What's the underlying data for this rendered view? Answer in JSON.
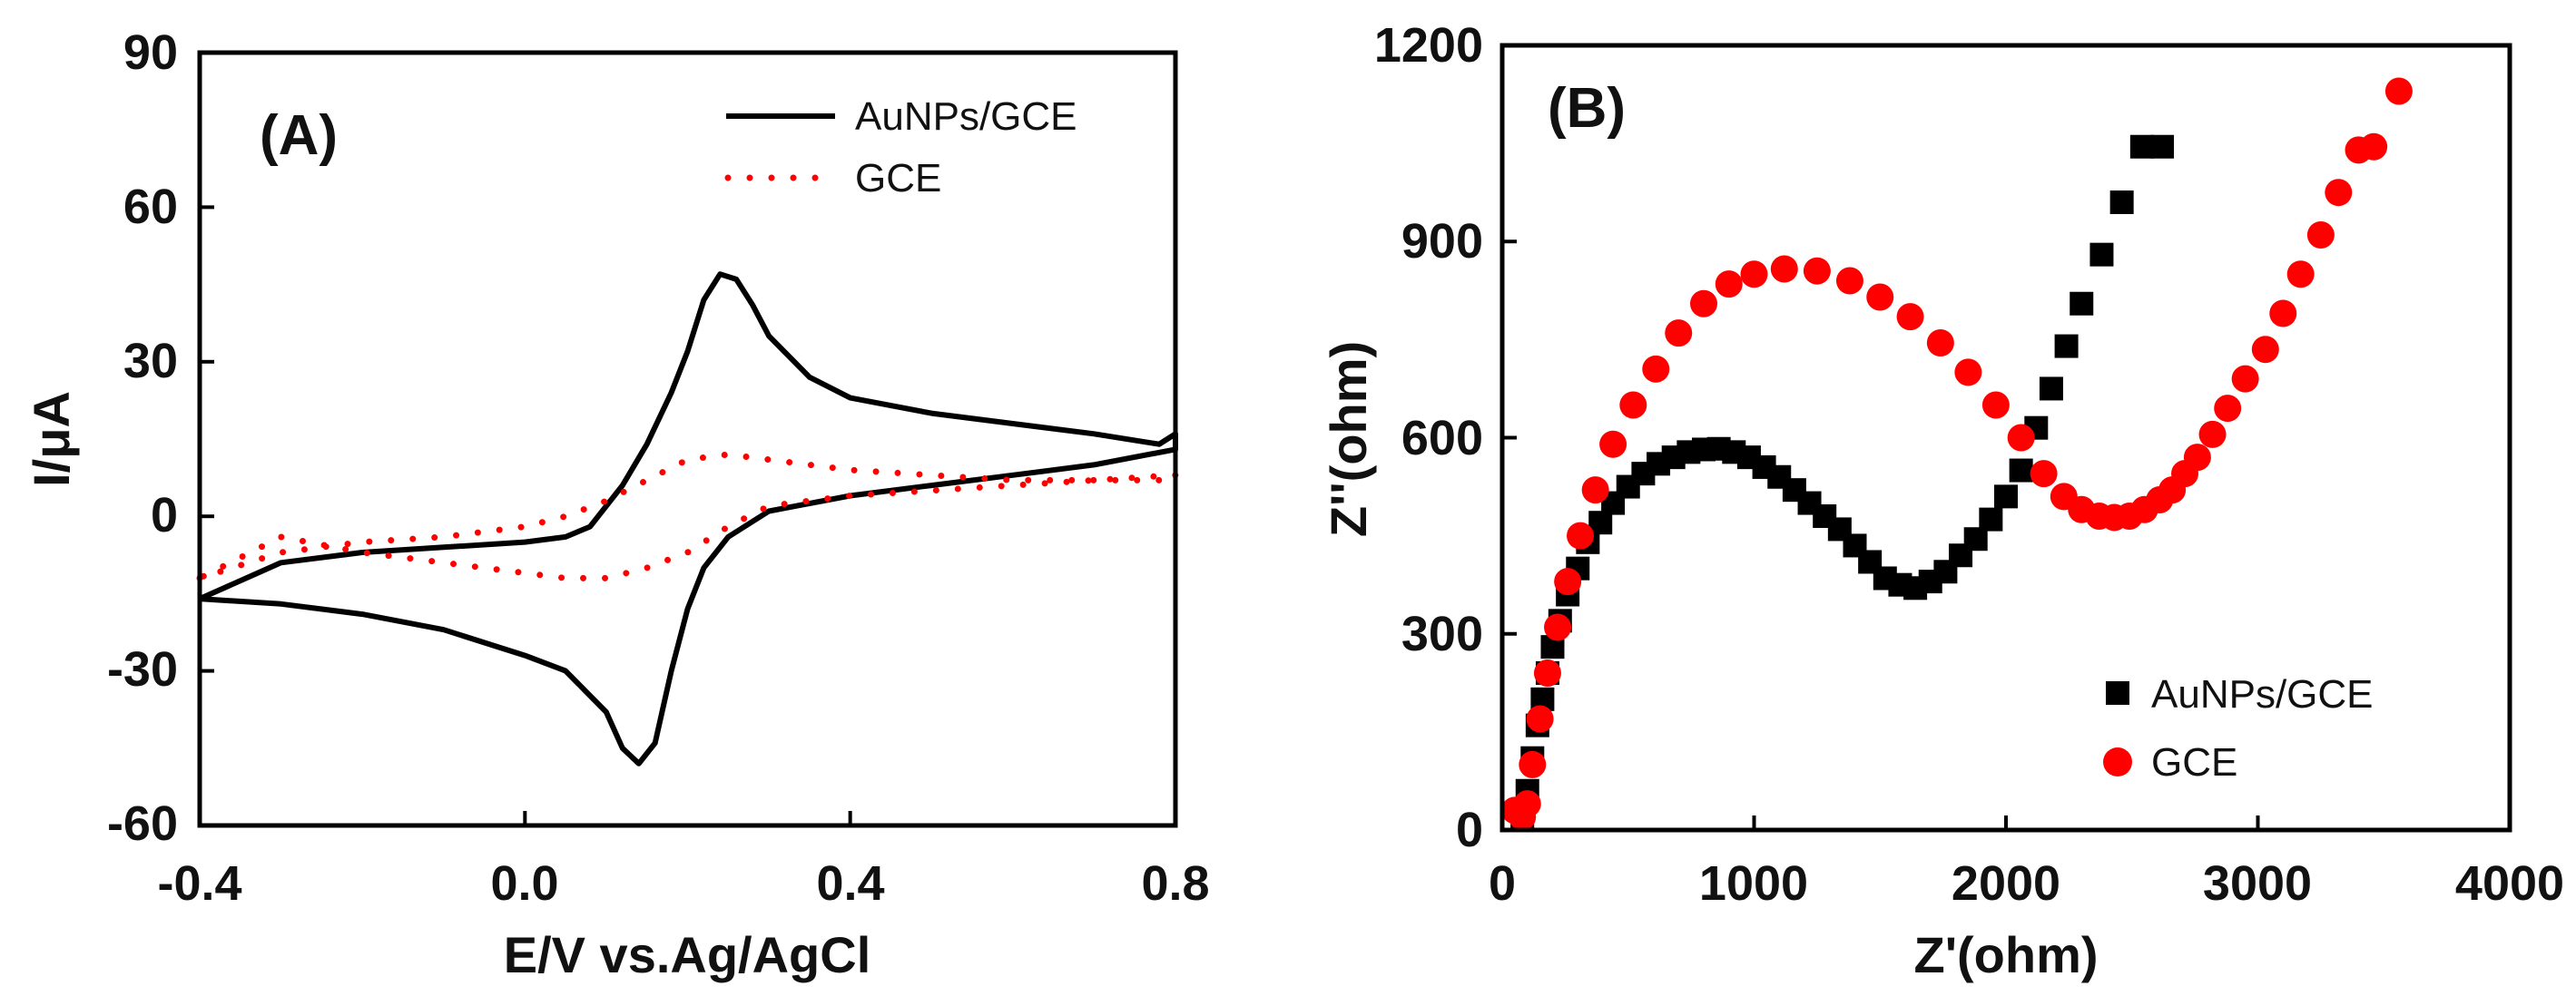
{
  "chart_data": [
    {
      "type": "line",
      "panel": "(A)",
      "xlabel": "E/V vs.Ag/AgCl",
      "ylabel": "I/μA",
      "xlim": [
        -0.4,
        0.8
      ],
      "ylim": [
        -60,
        90
      ],
      "xticks": [
        "-0.4",
        "0.0",
        "0.4",
        "0.8"
      ],
      "yticks": [
        "90",
        "60",
        "30",
        "0",
        "-30",
        "-60"
      ],
      "xtick_values": [
        -0.4,
        0.0,
        0.4,
        0.8
      ],
      "ytick_values": [
        90,
        60,
        30,
        0,
        -30,
        -60
      ],
      "legend": {
        "position": "top-right",
        "entries": [
          "AuNPs/GCE",
          "GCE"
        ]
      },
      "series": [
        {
          "name": "AuNPs/GCE",
          "style": "solid",
          "color": "#000000",
          "x": [
            -0.4,
            -0.3,
            -0.2,
            -0.1,
            0.0,
            0.05,
            0.08,
            0.12,
            0.15,
            0.18,
            0.2,
            0.22,
            0.24,
            0.26,
            0.28,
            0.3,
            0.35,
            0.4,
            0.5,
            0.6,
            0.7,
            0.78,
            0.8,
            0.8,
            0.7,
            0.6,
            0.5,
            0.4,
            0.3,
            0.25,
            0.22,
            0.2,
            0.18,
            0.16,
            0.14,
            0.12,
            0.1,
            0.05,
            0.0,
            -0.1,
            -0.2,
            -0.3,
            -0.4
          ],
          "y": [
            -16,
            -9,
            -7,
            -6,
            -5,
            -4,
            -2,
            6,
            14,
            24,
            32,
            42,
            47,
            46,
            41,
            35,
            27,
            23,
            20,
            18,
            16,
            14,
            16,
            13,
            10,
            8,
            6,
            4,
            1,
            -4,
            -10,
            -18,
            -30,
            -44,
            -48,
            -45,
            -38,
            -30,
            -27,
            -22,
            -19,
            -17,
            -16
          ]
        },
        {
          "name": "GCE",
          "style": "dotted",
          "color": "#ff0000",
          "x": [
            -0.4,
            -0.3,
            -0.2,
            -0.1,
            0.0,
            0.05,
            0.1,
            0.15,
            0.2,
            0.25,
            0.3,
            0.4,
            0.5,
            0.6,
            0.7,
            0.8,
            0.8,
            0.7,
            0.6,
            0.5,
            0.4,
            0.3,
            0.25,
            0.2,
            0.15,
            0.1,
            0.05,
            0.0,
            -0.1,
            -0.2,
            -0.3,
            -0.4
          ],
          "y": [
            -12,
            -7,
            -5,
            -4,
            -2,
            0,
            3,
            7,
            11,
            12,
            11,
            9,
            8,
            7,
            7,
            7,
            8,
            7,
            6,
            5,
            4,
            2,
            -2,
            -7,
            -10,
            -12,
            -12,
            -11,
            -9,
            -7,
            -4,
            -12
          ]
        }
      ]
    },
    {
      "type": "scatter",
      "panel": "(B)",
      "xlabel": "Z'(ohm)",
      "ylabel": "Z''(ohm)",
      "xlim": [
        0,
        4000
      ],
      "ylim": [
        0,
        1200
      ],
      "xticks": [
        "0",
        "1000",
        "2000",
        "3000",
        "4000"
      ],
      "yticks": [
        "1200",
        "900",
        "600",
        "300",
        "0"
      ],
      "xtick_values": [
        0,
        1000,
        2000,
        3000,
        4000
      ],
      "ytick_values": [
        1200,
        900,
        600,
        300,
        0
      ],
      "legend": {
        "position": "bottom-right",
        "entries": [
          "AuNPs/GCE",
          "GCE"
        ]
      },
      "series": [
        {
          "name": "AuNPs/GCE",
          "marker": "square",
          "color": "#000000",
          "x": [
            80,
            100,
            120,
            140,
            160,
            180,
            200,
            230,
            260,
            300,
            340,
            390,
            440,
            500,
            560,
            620,
            680,
            740,
            800,
            860,
            920,
            980,
            1040,
            1100,
            1160,
            1220,
            1280,
            1340,
            1400,
            1460,
            1520,
            1580,
            1640,
            1700,
            1760,
            1820,
            1880,
            1940,
            2000,
            2060,
            2120,
            2180,
            2240,
            2300,
            2380,
            2460,
            2540,
            2620
          ],
          "y": [
            20,
            60,
            110,
            160,
            200,
            240,
            280,
            320,
            360,
            400,
            440,
            470,
            500,
            525,
            545,
            560,
            570,
            578,
            582,
            583,
            578,
            570,
            555,
            540,
            520,
            500,
            480,
            460,
            435,
            410,
            385,
            375,
            370,
            380,
            395,
            420,
            445,
            475,
            510,
            550,
            615,
            675,
            740,
            805,
            880,
            960,
            1045,
            1045
          ]
        },
        {
          "name": "GCE",
          "marker": "circle",
          "color": "#ff0000",
          "x": [
            50,
            80,
            100,
            120,
            150,
            180,
            220,
            260,
            310,
            370,
            440,
            520,
            610,
            700,
            800,
            900,
            1000,
            1120,
            1250,
            1380,
            1500,
            1620,
            1740,
            1850,
            1960,
            2060,
            2150,
            2230,
            2300,
            2370,
            2430,
            2490,
            2550,
            2610,
            2660,
            2710,
            2760,
            2820,
            2880,
            2950,
            3030,
            3100,
            3170,
            3250,
            3320,
            3400,
            3460,
            3560
          ],
          "y": [
            30,
            20,
            40,
            100,
            170,
            240,
            310,
            380,
            450,
            520,
            590,
            650,
            705,
            760,
            805,
            835,
            850,
            858,
            855,
            840,
            815,
            785,
            745,
            700,
            650,
            600,
            545,
            510,
            490,
            480,
            478,
            480,
            490,
            505,
            520,
            545,
            570,
            605,
            645,
            690,
            735,
            790,
            850,
            910,
            975,
            1040,
            1045,
            1130
          ]
        }
      ]
    }
  ]
}
